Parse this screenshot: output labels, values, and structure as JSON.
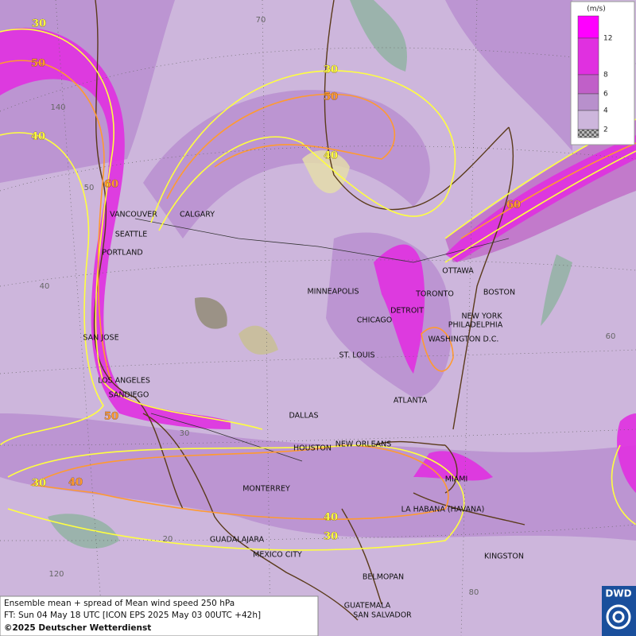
{
  "legend": {
    "unit": "(m/s)",
    "ticks": [
      12,
      8,
      6,
      4,
      2
    ]
  },
  "cities": [
    "VANCOUVER",
    "CALGARY",
    "SEATTLE",
    "PORTLAND",
    "MINNEAPOLIS",
    "TORONTO",
    "OTTAWA",
    "BOSTON",
    "DETROIT",
    "CHICAGO",
    "NEW YORK",
    "PHILADELPHIA",
    "WASHINGTON D.C.",
    "SAN JOSE",
    "ST. LOUIS",
    "LOS ANGELES",
    "SANDIEGO",
    "ATLANTA",
    "DALLAS",
    "HOUSTON",
    "NEW ORLEANS",
    "MIAMI",
    "MONTERREY",
    "LA HABANA (HAVANA)",
    "GUADALAJARA",
    "MEXICO CITY",
    "KINGSTON",
    "BELMOPAN",
    "GUATEMALA",
    "SAN SALVADOR"
  ],
  "contour_labels": [
    30,
    50,
    40,
    60,
    30,
    50,
    40,
    60,
    50,
    30,
    40,
    40,
    30
  ],
  "grid_labels": [
    70,
    140,
    50,
    40,
    60,
    30,
    20,
    120,
    80
  ],
  "footer": {
    "line1": "Ensemble mean + spread of Mean wind speed 250 hPa",
    "line2": "FT: Sun 04 May 18 UTC [ICON EPS 2025 May 03 00UTC +42h]",
    "line3": "©2025 Deutscher Wetterdienst"
  },
  "logo": "DWD"
}
